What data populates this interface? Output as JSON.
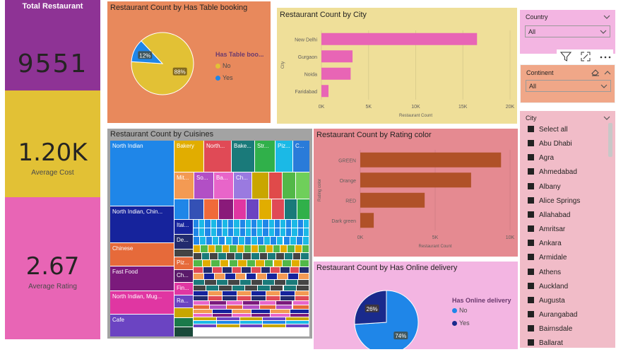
{
  "kpis": {
    "total_label": "Total Restaurant",
    "total_value": "9551",
    "cost_value": "1.20K",
    "cost_label": "Average Cost",
    "rating_value": "2.67",
    "rating_label": "Average Rating"
  },
  "table_booking": {
    "title": "Restaurant Count by Has Table booking",
    "legend_title": "Has Table boo...",
    "legend": [
      "No",
      "Yes"
    ],
    "slices": [
      88,
      12
    ],
    "labels": [
      "88%",
      "12%"
    ],
    "colors": [
      "#e2c135",
      "#1f86e8"
    ]
  },
  "city_chart": {
    "title": "Restaurant Count by City",
    "chart_data": {
      "type": "bar",
      "orientation": "horizontal",
      "categories": [
        "New Delhi",
        "Gurgaon",
        "Noida",
        "Faridabad"
      ],
      "values": [
        16500,
        3300,
        3100,
        750
      ],
      "xlim": [
        0,
        20000
      ],
      "ticks": [
        "0K",
        "5K",
        "10K",
        "15K",
        "20K"
      ],
      "xlabel": "Restaurant Count",
      "ylabel": "City",
      "color": "#e865b5"
    }
  },
  "cuisines": {
    "title": "Restaurant Count by Cuisines",
    "labels": {
      "north_indian": "North Indian",
      "north_indian_chinese": "North Indian, Chin...",
      "chinese": "Chinese",
      "fast_food": "Fast Food",
      "north_indian_mughlai": "North Indian, Mug...",
      "cafe": "Cafe",
      "bakery": "Bakery",
      "north2": "North...",
      "bake2": "Bake...",
      "str": "Str...",
      "piz": "Piz...",
      "c": "C...",
      "mit": "Mit...",
      "so": "So...",
      "ba": "Ba...",
      "ch": "Ch...",
      "ital": "Ital...",
      "de": "De...",
      "piz2": "Piz...",
      "ch2": "Ch...",
      "fin": "Fin...",
      "ra": "Ra..."
    }
  },
  "rating_chart": {
    "title": "Restaurant Count by Rating color",
    "chart_data": {
      "type": "bar",
      "orientation": "horizontal",
      "categories": [
        "GREEN",
        "Orange",
        "RED",
        "Dark green"
      ],
      "values": [
        9400,
        7400,
        4300,
        900
      ],
      "xlim": [
        0,
        10000
      ],
      "ticks": [
        "0K",
        "5K",
        "10K"
      ],
      "xlabel": "Restaurant Count",
      "ylabel": "Rating color",
      "color": "#b05128"
    }
  },
  "online_delivery": {
    "title": "Restaurant Count by Has Online delivery",
    "legend_title": "Has Online delivery",
    "legend": [
      "No",
      "Yes"
    ],
    "slices": [
      74,
      26
    ],
    "labels": [
      "74%",
      "26%"
    ],
    "colors": [
      "#1f86e8",
      "#1a2a8c"
    ]
  },
  "slicers": {
    "country_title": "Country",
    "country_value": "All",
    "continent_title": "Continent",
    "continent_value": "All",
    "city_title": "City",
    "city_items": [
      "Select all",
      "Abu Dhabi",
      "Agra",
      "Ahmedabad",
      "Albany",
      "Alice Springs",
      "Allahabad",
      "Amritsar",
      "Ankara",
      "Armidale",
      "Athens",
      "Auckland",
      "Augusta",
      "Aurangabad",
      "Bairnsdale",
      "Ballarat"
    ]
  }
}
